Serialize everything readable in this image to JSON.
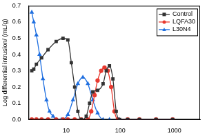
{
  "chart_data": {
    "type": "line",
    "y_label": "Log differential intrusion/ (mL/g)",
    "log": "x",
    "xlim": [
      2,
      3000
    ],
    "xticks": [
      10,
      100,
      1000
    ],
    "ylim": [
      0,
      0.7
    ],
    "yticks": [
      {
        "value": 0,
        "label": "0.0"
      },
      0.1,
      0.2,
      0.3,
      0.4,
      0.5,
      0.6,
      0.7
    ],
    "grid": false,
    "legend": "upper right",
    "series": [
      {
        "name": "Control",
        "color": "#333333",
        "marker": "square",
        "x": [
          2.3,
          2.5,
          2.8,
          3.5,
          4.6,
          6.5,
          8.7,
          10.7,
          12.4,
          14.3,
          16.4,
          18.9,
          23.4,
          27,
          31,
          38,
          48,
          55,
          63,
          73,
          84,
          97,
          137,
          226,
          459,
          931
        ],
        "values": [
          0.3,
          0.31,
          0.34,
          0.38,
          0.43,
          0.48,
          0.5,
          0.49,
          0.35,
          0.2,
          0.05,
          0.0,
          0.02,
          0.1,
          0.17,
          0.18,
          0.22,
          0.3,
          0.33,
          0.25,
          0.05,
          0.0,
          0.0,
          0.0,
          0.0,
          0.0
        ]
      },
      {
        "name": "LQFA30",
        "color": "#e8392f",
        "marker": "circle",
        "x": [
          2.3,
          2.8,
          3.5,
          4.6,
          6.5,
          8.7,
          10.7,
          14.3,
          18.9,
          25.1,
          29,
          33.4,
          38,
          44.3,
          51,
          58.8,
          67.8,
          78,
          90,
          137,
          226,
          459,
          931
        ],
        "values": [
          0.0,
          0.0,
          0.0,
          0.0,
          0.0,
          0.0,
          0.0,
          0.0,
          0.0,
          0.0,
          0.05,
          0.15,
          0.24,
          0.3,
          0.32,
          0.3,
          0.2,
          0.05,
          0.0,
          0.0,
          0.0,
          0.0,
          0.0
        ]
      },
      {
        "name": "L30N4",
        "color": "#1f6fe0",
        "marker": "triangle",
        "x": [
          2.3,
          2.5,
          2.8,
          3.2,
          3.7,
          4.3,
          4.9,
          5.7,
          6.5,
          8.1,
          10.7,
          13.3,
          16.4,
          20.3,
          25.1,
          31,
          38,
          48,
          63,
          97,
          137,
          226,
          459,
          931
        ],
        "values": [
          0.66,
          0.6,
          0.52,
          0.4,
          0.25,
          0.12,
          0.05,
          0.02,
          0.0,
          0.0,
          0.03,
          0.12,
          0.22,
          0.26,
          0.22,
          0.12,
          0.04,
          0.0,
          0.0,
          0.0,
          0.0,
          0.0,
          0.0,
          0.0
        ]
      }
    ]
  }
}
